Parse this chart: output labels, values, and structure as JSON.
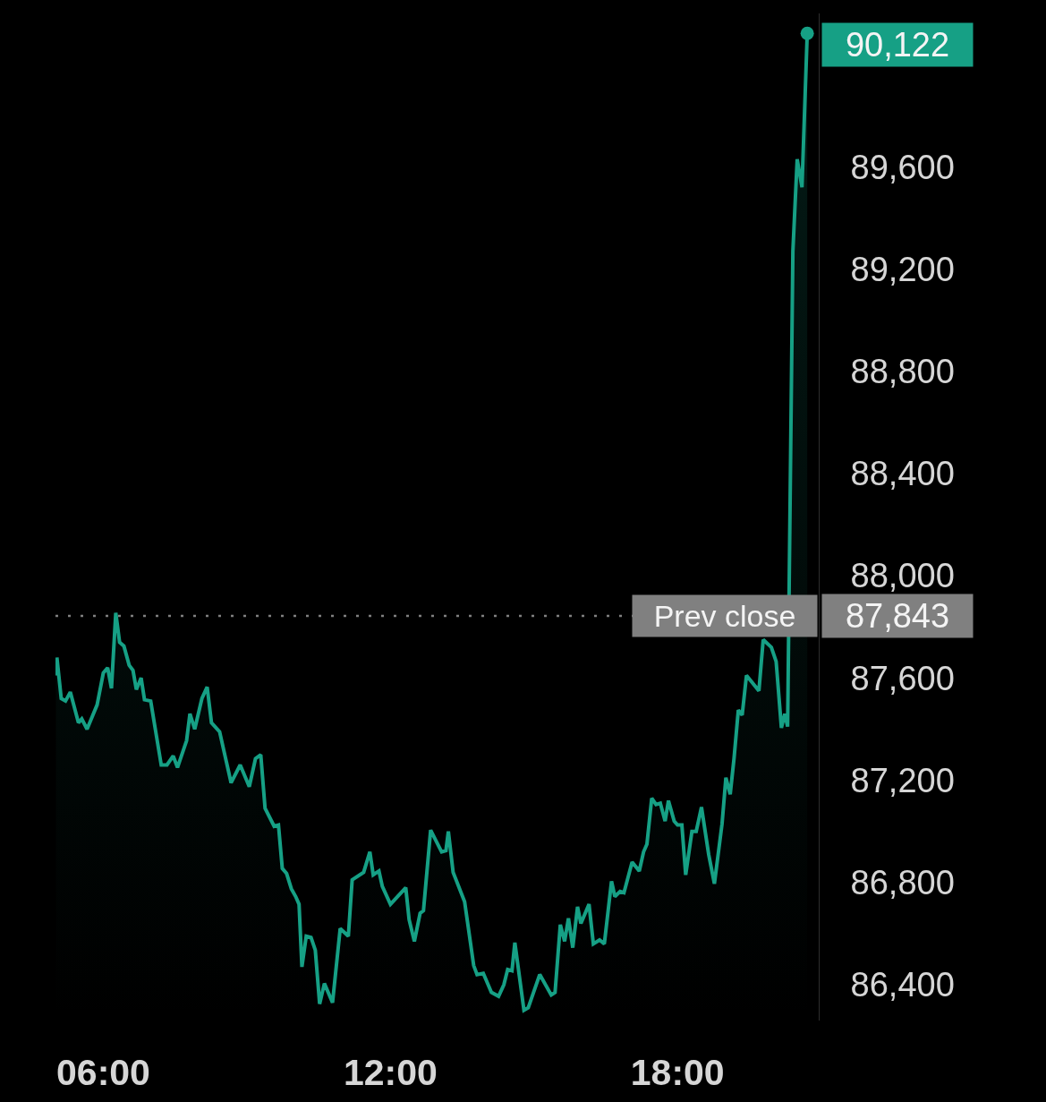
{
  "chart_data": {
    "type": "area",
    "x": [
      5.01,
      5.03,
      5.12,
      5.21,
      5.31,
      5.48,
      5.55,
      5.66,
      5.87,
      6.0,
      6.09,
      6.17,
      6.26,
      6.34,
      6.43,
      6.54,
      6.62,
      6.69,
      6.79,
      6.86,
      6.99,
      7.21,
      7.33,
      7.46,
      7.55,
      7.74,
      7.81,
      7.91,
      8.06,
      8.17,
      8.26,
      8.43,
      8.67,
      8.86,
      9.05,
      9.18,
      9.29,
      9.38,
      9.57,
      9.66,
      9.74,
      9.83,
      9.93,
      10.02,
      10.09,
      10.15,
      10.24,
      10.34,
      10.43,
      10.52,
      10.62,
      10.79,
      10.95,
      11.12,
      11.2,
      11.44,
      11.57,
      11.64,
      11.76,
      11.83,
      12.0,
      12.32,
      12.39,
      12.5,
      12.62,
      12.69,
      12.84,
      13.07,
      13.16,
      13.21,
      13.31,
      13.55,
      13.74,
      13.81,
      13.94,
      14.11,
      14.26,
      14.37,
      14.45,
      14.54,
      14.6,
      14.79,
      14.88,
      15.12,
      15.36,
      15.44,
      15.55,
      15.64,
      15.72,
      15.81,
      15.91,
      15.98,
      16.15,
      16.24,
      16.37,
      16.47,
      16.62,
      16.69,
      16.8,
      16.88,
      17.05,
      17.2,
      17.29,
      17.36,
      17.46,
      17.55,
      17.64,
      17.74,
      17.81,
      17.93,
      18.0,
      18.09,
      18.17,
      18.3,
      18.39,
      18.5,
      18.65,
      18.77,
      18.93,
      19.01,
      19.1,
      19.18,
      19.27,
      19.35,
      19.44,
      19.7,
      19.79,
      19.96,
      20.06,
      20.17,
      20.24,
      20.3,
      20.41,
      20.5,
      20.6,
      20.71
    ],
    "series": [
      {
        "color": "#16a085",
        "values": [
          87610,
          87680,
          87520,
          87510,
          87545,
          87425,
          87440,
          87400,
          87495,
          87620,
          87640,
          87560,
          87855,
          87740,
          87725,
          87650,
          87630,
          87555,
          87600,
          87515,
          87510,
          87260,
          87260,
          87295,
          87250,
          87355,
          87460,
          87400,
          87520,
          87565,
          87425,
          87390,
          87190,
          87260,
          87175,
          87285,
          87300,
          87090,
          87020,
          87025,
          86855,
          86835,
          86775,
          86745,
          86715,
          86470,
          86590,
          86585,
          86535,
          86325,
          86405,
          86330,
          86620,
          86590,
          86810,
          86840,
          86920,
          86830,
          86845,
          86785,
          86715,
          86780,
          86655,
          86570,
          86680,
          86690,
          87005,
          86920,
          86925,
          87000,
          86840,
          86725,
          86475,
          86440,
          86445,
          86370,
          86355,
          86400,
          86460,
          86455,
          86565,
          86300,
          86310,
          86440,
          86360,
          86370,
          86635,
          86570,
          86660,
          86545,
          86705,
          86640,
          86715,
          86560,
          86575,
          86560,
          86805,
          86745,
          86765,
          86760,
          86880,
          86845,
          86920,
          86950,
          87130,
          87105,
          87110,
          87040,
          87120,
          87040,
          87025,
          87025,
          86830,
          87000,
          87000,
          87095,
          86910,
          86795,
          87030,
          87210,
          87145,
          87285,
          87475,
          87455,
          87610,
          87550,
          87750,
          87720,
          87665,
          87405,
          87460,
          87410,
          89270,
          89630,
          89520,
          90122
        ],
        "value_labels": [
          null,
          null,
          null,
          null,
          null,
          null,
          null,
          null,
          null,
          null,
          null,
          null,
          null,
          null,
          null,
          null,
          null,
          null,
          null,
          null,
          null,
          null,
          null,
          null,
          null,
          null,
          null,
          null,
          null,
          null,
          null,
          null,
          null,
          null,
          null,
          null,
          null,
          null,
          null,
          null,
          null,
          null,
          null,
          null,
          null,
          null,
          null,
          null,
          null,
          null,
          null,
          null,
          null,
          null,
          null,
          null,
          null,
          null,
          null,
          null,
          null,
          null,
          null,
          null,
          null,
          null,
          null,
          null,
          null,
          null,
          null,
          null,
          null,
          null,
          null,
          null,
          null,
          null,
          null,
          null,
          null,
          null,
          null,
          null,
          null,
          null,
          null,
          null,
          null,
          null,
          null,
          null,
          null,
          null,
          null,
          null,
          null,
          null,
          null,
          null,
          null,
          null,
          null,
          null,
          null,
          null,
          null,
          null,
          null,
          null,
          null,
          null,
          null,
          null,
          null,
          null,
          null,
          null,
          null,
          null,
          null,
          null,
          null,
          null,
          null,
          null,
          null,
          null,
          null,
          null,
          null,
          null,
          null,
          null,
          null,
          "90,122"
        ]
      }
    ],
    "xlim": [
      5.0,
      20.95
    ],
    "xticks": [
      {
        "value": 6,
        "label": "06:00"
      },
      {
        "value": 12,
        "label": "12:00"
      },
      {
        "value": 18,
        "label": "18:00"
      }
    ],
    "ylim": [
      86260,
      90200
    ],
    "yticks": [
      {
        "value": 86400,
        "label": "86,400"
      },
      {
        "value": 86800,
        "label": "86,800"
      },
      {
        "value": 87200,
        "label": "87,200"
      },
      {
        "value": 87600,
        "label": "87,600"
      },
      {
        "value": 88000,
        "label": "88,000"
      },
      {
        "value": 88400,
        "label": "88,400"
      },
      {
        "value": 88800,
        "label": "88,800"
      },
      {
        "value": 89200,
        "label": "89,200"
      },
      {
        "value": 89600,
        "label": "89,600"
      }
    ],
    "ref_lines": [
      {
        "axis": "y",
        "value": 87843,
        "label": "Prev close",
        "color": "#808080",
        "line_style": "dotted"
      }
    ],
    "annotations": [
      "87,843"
    ]
  }
}
